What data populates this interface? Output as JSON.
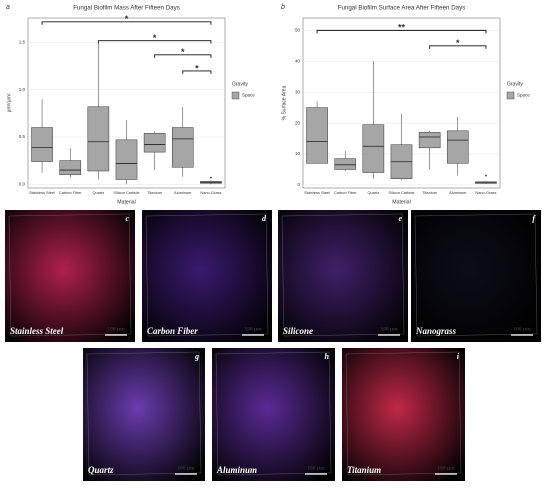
{
  "chart_data": [
    {
      "type": "box",
      "panel": "a",
      "title": "Fungal Biofilm Mass After Fifteen Days",
      "x_label": "Material",
      "y_label": "μm³/μm²",
      "categories": [
        "Stainless Steel",
        "Carbon Fiber",
        "Quartz",
        "Silicon Carbide",
        "Titanium",
        "Aluminum",
        "Nano-Grass"
      ],
      "series": [
        {
          "name": "Space",
          "color": "#a6a6a6",
          "min": [
            0.12,
            0.07,
            0.05,
            0.0,
            0.15,
            0.08,
            0.0
          ],
          "q1": [
            0.24,
            0.1,
            0.14,
            0.05,
            0.34,
            0.18,
            0.01
          ],
          "median": [
            0.39,
            0.15,
            0.45,
            0.22,
            0.42,
            0.48,
            0.02
          ],
          "q3": [
            0.6,
            0.25,
            0.82,
            0.47,
            0.54,
            0.6,
            0.03
          ],
          "max": [
            0.9,
            0.38,
            1.5,
            0.68,
            0.56,
            0.82,
            0.04
          ],
          "outliers": [
            [],
            [],
            [],
            [],
            [],
            [],
            [
              0.07
            ]
          ]
        }
      ],
      "ylim": [
        -0.04,
        1.76
      ],
      "yticks": [
        {
          "value": 0,
          "label": "0.0"
        },
        {
          "value": 0.5,
          "label": "0.5"
        },
        {
          "value": 1,
          "label": "1.0"
        },
        {
          "value": 1.5,
          "label": "1.5"
        }
      ],
      "grid": true,
      "legend_title": "Gravity",
      "legend_position": "right",
      "comparisons": [
        {
          "from": "Stainless Steel",
          "to": "Nano-Grass",
          "y": 1.72,
          "label": "*"
        },
        {
          "from": "Quartz",
          "to": "Nano-Grass",
          "y": 1.52,
          "label": "*"
        },
        {
          "from": "Titanium",
          "to": "Nano-Grass",
          "y": 1.37,
          "label": "*"
        },
        {
          "from": "Aluminum",
          "to": "Nano-Grass",
          "y": 1.2,
          "label": "*"
        }
      ]
    },
    {
      "type": "box",
      "panel": "b",
      "title": "Fungal Biofilm Surface Area After Fifteen Days",
      "x_label": "Material",
      "y_label": "% Surface Area",
      "categories": [
        "Stainless Steel",
        "Carbon Fiber",
        "Quartz",
        "Silicon Carbide",
        "Titanium",
        "Aluminum",
        "Nano-Grass"
      ],
      "series": [
        {
          "name": "Space",
          "color": "#a6a6a6",
          "min": [
            7,
            4.5,
            2,
            1.5,
            5,
            3,
            0.3
          ],
          "q1": [
            7,
            5,
            4,
            2,
            12,
            7,
            0.5
          ],
          "median": [
            14,
            6.5,
            12.5,
            7.5,
            15.5,
            14.5,
            0.7
          ],
          "q3": [
            25,
            8.5,
            19.5,
            13,
            17,
            17.5,
            1
          ],
          "max": [
            27,
            11,
            40,
            23,
            17.5,
            22,
            1.2
          ],
          "outliers": [
            [],
            [],
            [],
            [],
            [],
            [],
            [
              3
            ]
          ]
        }
      ],
      "ylim": [
        -1,
        54
      ],
      "yticks": [
        0,
        10,
        20,
        30,
        40,
        50
      ],
      "grid": true,
      "legend_title": "Gravity",
      "legend_position": "right",
      "comparisons": [
        {
          "from": "Stainless Steel",
          "to": "Nano-Grass",
          "y": 50,
          "label": "**"
        },
        {
          "from": "Titanium",
          "to": "Nano-Grass",
          "y": 45,
          "label": "*"
        }
      ]
    }
  ],
  "panels": [
    {
      "letter": "c",
      "label": "Stainless Steel",
      "scale": "100 μm",
      "color": "#b0204e"
    },
    {
      "letter": "d",
      "label": "Carbon Fiber",
      "scale": "100 μm",
      "color": "#3a1a70"
    },
    {
      "letter": "e",
      "label": "Silicone",
      "scale": "100 μm",
      "color": "#40206a"
    },
    {
      "letter": "f",
      "label": "Nanograss",
      "scale": "100 μm",
      "color": "#0c0c18"
    },
    {
      "letter": "g",
      "label": "Quartz",
      "scale": "100 μm",
      "color": "#6a3cb0"
    },
    {
      "letter": "h",
      "label": "Aluminum",
      "scale": "100 μm",
      "color": "#5a2a96"
    },
    {
      "letter": "i",
      "label": "Titanium",
      "scale": "100 μm",
      "color": "#c02848"
    }
  ]
}
